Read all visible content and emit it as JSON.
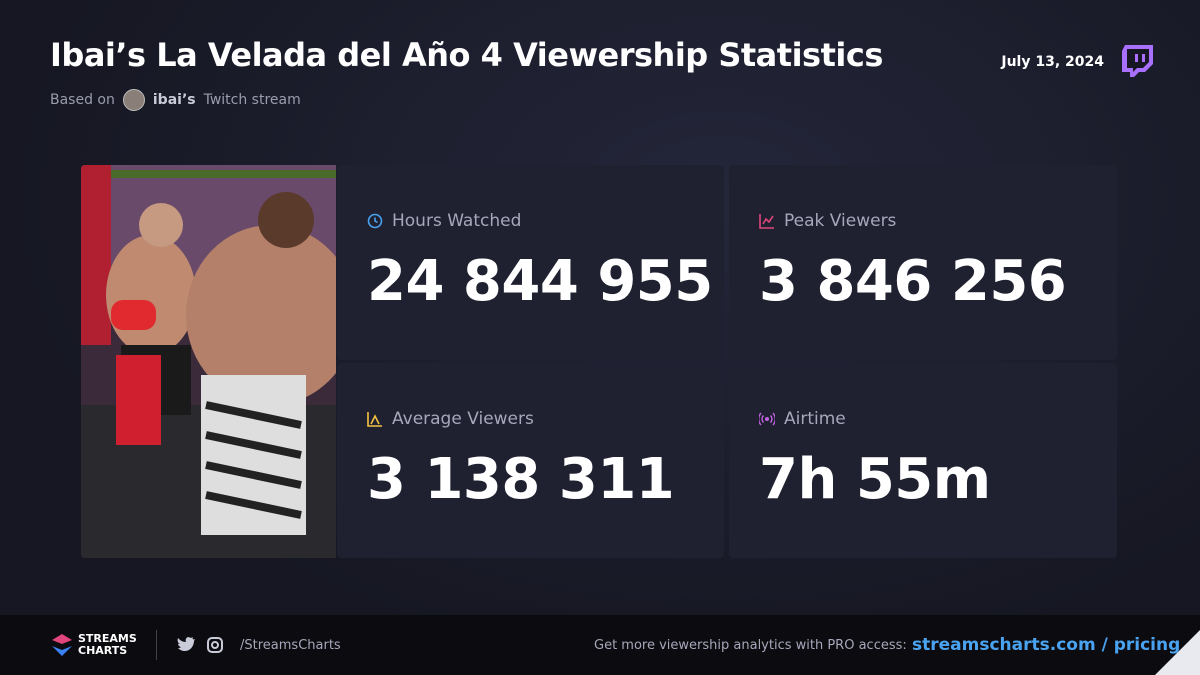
{
  "header": {
    "title": "Ibai’s La Velada del Año 4 Viewership Statistics",
    "subtitle_prefix": "Based on",
    "channel": "ibai’s",
    "subtitle_suffix": "Twitch stream",
    "date": "July 13, 2024"
  },
  "stats": [
    {
      "label": "Hours Watched",
      "value": "24 844 955"
    },
    {
      "label": "Peak Viewers",
      "value": "3 846 256"
    },
    {
      "label": "Average Viewers",
      "value": "3 138 311"
    },
    {
      "label": "Airtime",
      "value": "7h 55m"
    }
  ],
  "footer": {
    "logo_line1": "STREAMS",
    "logo_line2": "CHARTS",
    "handle": "/StreamsCharts",
    "promo": "Get more viewership analytics with PRO access:",
    "link": "streamscharts.com / pricing"
  }
}
